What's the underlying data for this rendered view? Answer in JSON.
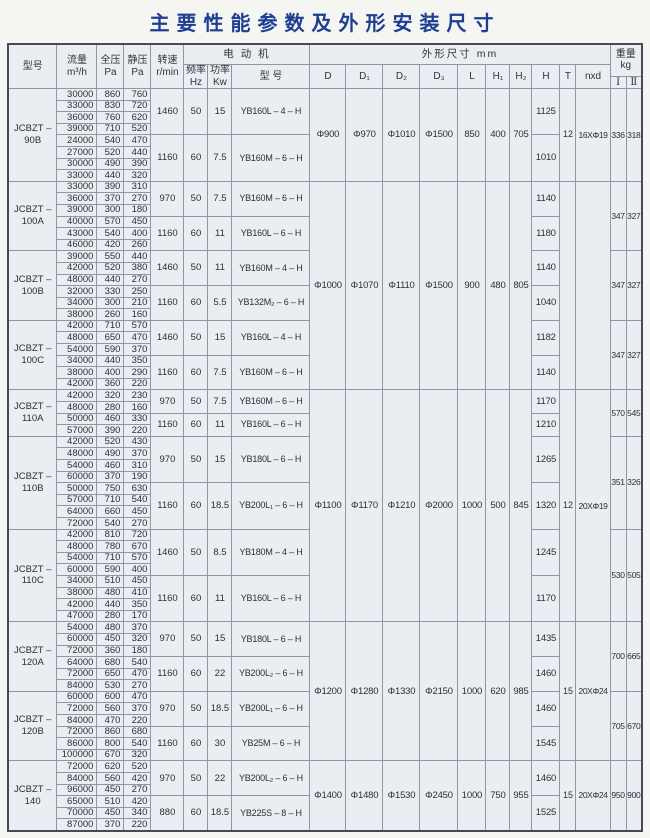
{
  "title": "主要性能参数及外形安装尺寸",
  "header": {
    "model": "型号",
    "flow": [
      "流量",
      "m³/h"
    ],
    "full_pressure": [
      "全压",
      "Pa"
    ],
    "static_pressure": [
      "静压",
      "Pa"
    ],
    "speed": [
      "转速",
      "r/min"
    ],
    "motor_group": "电 动 机",
    "freq": [
      "频率",
      "Hz"
    ],
    "power": [
      "功率",
      "Kw"
    ],
    "motor_model": "型 号",
    "dims_group": "外形尺寸 mm",
    "dims": [
      "D",
      "D₁",
      "D₂",
      "D₃",
      "L",
      "H₁",
      "H₂",
      "H",
      "T",
      "nxd"
    ],
    "weight_group": [
      "重量",
      "kg"
    ],
    "weight_cols": [
      "Ⅰ",
      "Ⅱ"
    ]
  },
  "sections": [
    {
      "model": [
        "JCBZT –",
        "90B"
      ],
      "weight": [
        "336",
        "318"
      ],
      "groups": [
        {
          "speed": "1460",
          "hz": "50",
          "kw": "15",
          "motor": "YB160L – 4 – H",
          "h": "1125",
          "rows": [
            [
              "30000",
              "860",
              "760"
            ],
            [
              "33000",
              "830",
              "720"
            ],
            [
              "36000",
              "760",
              "620"
            ],
            [
              "39000",
              "710",
              "520"
            ]
          ]
        },
        {
          "speed": "1160",
          "hz": "60",
          "kw": "7.5",
          "motor": "YB160M – 6 – H",
          "h": "1010",
          "rows": [
            [
              "24000",
              "540",
              "470"
            ],
            [
              "27000",
              "520",
              "440"
            ],
            [
              "30000",
              "490",
              "390"
            ],
            [
              "33000",
              "440",
              "320"
            ]
          ]
        }
      ]
    },
    {
      "model": [
        "JCBZT –",
        "100A"
      ],
      "weight": [
        "347",
        "327"
      ],
      "groups": [
        {
          "speed": "970",
          "hz": "50",
          "kw": "7.5",
          "motor": "YB160M – 6 – H",
          "h": "1140",
          "rows": [
            [
              "33000",
              "390",
              "310"
            ],
            [
              "36000",
              "370",
              "270"
            ],
            [
              "39000",
              "300",
              "180"
            ]
          ]
        },
        {
          "speed": "1160",
          "hz": "60",
          "kw": "11",
          "motor": "YB160L – 6 – H",
          "h": "1180",
          "rows": [
            [
              "40000",
              "570",
              "450"
            ],
            [
              "43000",
              "540",
              "400"
            ],
            [
              "46000",
              "420",
              "260"
            ]
          ]
        }
      ]
    },
    {
      "model": [
        "JCBZT –",
        "100B"
      ],
      "weight": [
        "347",
        "327"
      ],
      "groups": [
        {
          "speed": "1460",
          "hz": "50",
          "kw": "11",
          "motor": "YB160M – 4 – H",
          "h": "1140",
          "rows": [
            [
              "39000",
              "550",
              "440"
            ],
            [
              "42000",
              "520",
              "380"
            ],
            [
              "48000",
              "440",
              "270"
            ]
          ]
        },
        {
          "speed": "1160",
          "hz": "60",
          "kw": "5.5",
          "motor": "YB132M₂ – 6 – H",
          "h": "1040",
          "rows": [
            [
              "32000",
              "330",
              "250"
            ],
            [
              "34000",
              "300",
              "210"
            ],
            [
              "38000",
              "260",
              "160"
            ]
          ]
        }
      ]
    },
    {
      "model": [
        "JCBZT –",
        "100C"
      ],
      "weight": [
        "347",
        "327"
      ],
      "groups": [
        {
          "speed": "1460",
          "hz": "50",
          "kw": "15",
          "motor": "YB160L – 4 – H",
          "h": "1182",
          "rows": [
            [
              "42000",
              "710",
              "570"
            ],
            [
              "48000",
              "650",
              "470"
            ],
            [
              "54000",
              "590",
              "370"
            ]
          ]
        },
        {
          "speed": "1160",
          "hz": "60",
          "kw": "7.5",
          "motor": "YB160M – 6 – H",
          "h": "1140",
          "rows": [
            [
              "34000",
              "440",
              "350"
            ],
            [
              "38000",
              "400",
              "290"
            ],
            [
              "42000",
              "360",
              "220"
            ]
          ]
        }
      ]
    },
    {
      "model": [
        "JCBZT –",
        "110A"
      ],
      "weight": [
        "570",
        "545"
      ],
      "groups": [
        {
          "speed": "970",
          "hz": "50",
          "kw": "7.5",
          "motor": "YB160M – 6 – H",
          "h": "1170",
          "rows": [
            [
              "42000",
              "320",
              "230"
            ],
            [
              "48000",
              "280",
              "160"
            ]
          ]
        },
        {
          "speed": "1160",
          "hz": "60",
          "kw": "11",
          "motor": "YB160L – 6 – H",
          "h": "1210",
          "rows": [
            [
              "50000",
              "460",
              "330"
            ],
            [
              "57000",
              "390",
              "220"
            ]
          ]
        }
      ]
    },
    {
      "model": [
        "JCBZT –",
        "110B"
      ],
      "weight": [
        "351",
        "326"
      ],
      "groups": [
        {
          "speed": "970",
          "hz": "50",
          "kw": "15",
          "motor": "YB180L – 6 – H",
          "h": "1265",
          "rows": [
            [
              "42000",
              "520",
              "430"
            ],
            [
              "48000",
              "490",
              "370"
            ],
            [
              "54000",
              "460",
              "310"
            ],
            [
              "60000",
              "370",
              "190"
            ]
          ]
        },
        {
          "speed": "1160",
          "hz": "60",
          "kw": "18.5",
          "motor": "YB200L₁ – 6 – H",
          "h": "1320",
          "rows": [
            [
              "50000",
              "750",
              "630"
            ],
            [
              "57000",
              "710",
              "540"
            ],
            [
              "64000",
              "660",
              "450"
            ],
            [
              "72000",
              "540",
              "270"
            ]
          ]
        }
      ]
    },
    {
      "model": [
        "JCBZT –",
        "110C"
      ],
      "weight": [
        "530",
        "505"
      ],
      "groups": [
        {
          "speed": "1460",
          "hz": "50",
          "kw": "8.5",
          "motor": "YB180M – 4 – H",
          "h": "1245",
          "rows": [
            [
              "42000",
              "810",
              "720"
            ],
            [
              "48000",
              "780",
              "670"
            ],
            [
              "54000",
              "710",
              "570"
            ],
            [
              "60000",
              "590",
              "400"
            ]
          ]
        },
        {
          "speed": "1160",
          "hz": "60",
          "kw": "11",
          "motor": "YB160L – 6 – H",
          "h": "1170",
          "rows": [
            [
              "34000",
              "510",
              "450"
            ],
            [
              "38000",
              "480",
              "410"
            ],
            [
              "42000",
              "440",
              "350"
            ],
            [
              "47000",
              "280",
              "170"
            ]
          ]
        }
      ]
    },
    {
      "model": [
        "JCBZT –",
        "120A"
      ],
      "weight": [
        "700",
        "665"
      ],
      "groups": [
        {
          "speed": "970",
          "hz": "50",
          "kw": "15",
          "motor": "YB180L – 6 – H",
          "h": "1435",
          "rows": [
            [
              "54000",
              "480",
              "370"
            ],
            [
              "60000",
              "450",
              "320"
            ],
            [
              "72000",
              "360",
              "180"
            ]
          ]
        },
        {
          "speed": "1160",
          "hz": "60",
          "kw": "22",
          "motor": "YB200L₂ – 6 – H",
          "h": "1460",
          "rows": [
            [
              "64000",
              "680",
              "540"
            ],
            [
              "72000",
              "650",
              "470"
            ],
            [
              "84000",
              "530",
              "270"
            ]
          ]
        }
      ]
    },
    {
      "model": [
        "JCBZT –",
        "120B"
      ],
      "weight": [
        "705",
        "670"
      ],
      "groups": [
        {
          "speed": "970",
          "hz": "50",
          "kw": "18.5",
          "motor": "YB200L₁ – 6 – H",
          "h": "1460",
          "rows": [
            [
              "60000",
              "600",
              "470"
            ],
            [
              "72000",
              "560",
              "370"
            ],
            [
              "84000",
              "470",
              "220"
            ]
          ]
        },
        {
          "speed": "1160",
          "hz": "60",
          "kw": "30",
          "motor": "YB25M – 6 – H",
          "h": "1545",
          "rows": [
            [
              "72000",
              "860",
              "680"
            ],
            [
              "86000",
              "800",
              "540"
            ],
            [
              "100000",
              "670",
              "320"
            ]
          ]
        }
      ]
    },
    {
      "model": [
        "JCBZT –",
        "140"
      ],
      "weight": [
        "950",
        "900"
      ],
      "groups": [
        {
          "speed": "970",
          "hz": "50",
          "kw": "22",
          "motor": "YB200L₂ – 6 – H",
          "h": "1460",
          "rows": [
            [
              "72000",
              "620",
              "520"
            ],
            [
              "84000",
              "560",
              "420"
            ],
            [
              "96000",
              "450",
              "270"
            ]
          ]
        },
        {
          "speed": "880",
          "hz": "60",
          "kw": "18.5",
          "motor": "YB225S – 8 – H",
          "h": "1525",
          "rows": [
            [
              "65000",
              "510",
              "420"
            ],
            [
              "70000",
              "450",
              "340"
            ],
            [
              "87000",
              "370",
              "220"
            ]
          ]
        }
      ]
    }
  ],
  "dim_groups": [
    {
      "sections": [
        0
      ],
      "values": [
        "Φ900",
        "Φ970",
        "Φ1010",
        "Φ1500",
        "850",
        "400",
        "705"
      ],
      "t": "12",
      "nxd": "16XΦ19"
    },
    {
      "sections": [
        1,
        2,
        3
      ],
      "values": [
        "Φ1000",
        "Φ1070",
        "Φ1110",
        "Φ1500",
        "900",
        "480",
        "805"
      ],
      "t": "",
      "nxd": ""
    },
    {
      "sections": [
        4,
        5,
        6
      ],
      "values": [
        "Φ1100",
        "Φ1170",
        "Φ1210",
        "Φ2000",
        "1000",
        "500",
        "845"
      ],
      "t": "12",
      "nxd": "20XΦ19"
    },
    {
      "sections": [
        7,
        8
      ],
      "values": [
        "Φ1200",
        "Φ1280",
        "Φ1330",
        "Φ2150",
        "1000",
        "620",
        "985"
      ],
      "t": "15",
      "nxd": "20XΦ24"
    },
    {
      "sections": [
        9
      ],
      "values": [
        "Φ1400",
        "Φ1480",
        "Φ1530",
        "Φ2450",
        "1000",
        "750",
        "955"
      ],
      "t": "15",
      "nxd": "20XΦ24"
    }
  ]
}
